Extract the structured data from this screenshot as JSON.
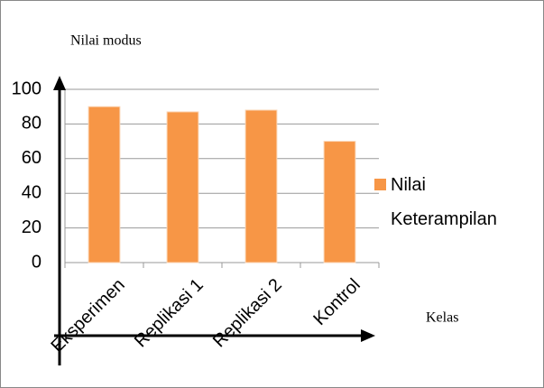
{
  "chart_data": {
    "type": "bar",
    "y_label": "Nilai modus",
    "x_label": "Kelas",
    "categories": [
      "Eksperimen",
      "Replikasi 1",
      "Replikasi 2",
      "Kontrol"
    ],
    "series": [
      {
        "name": "Nilai Keterampilan",
        "color": "#f79646",
        "values": [
          90,
          87,
          88,
          70
        ]
      }
    ],
    "ylim": [
      0,
      100
    ],
    "yticks": [
      0,
      20,
      40,
      60,
      80,
      100
    ],
    "grid": true,
    "legend": "right"
  }
}
